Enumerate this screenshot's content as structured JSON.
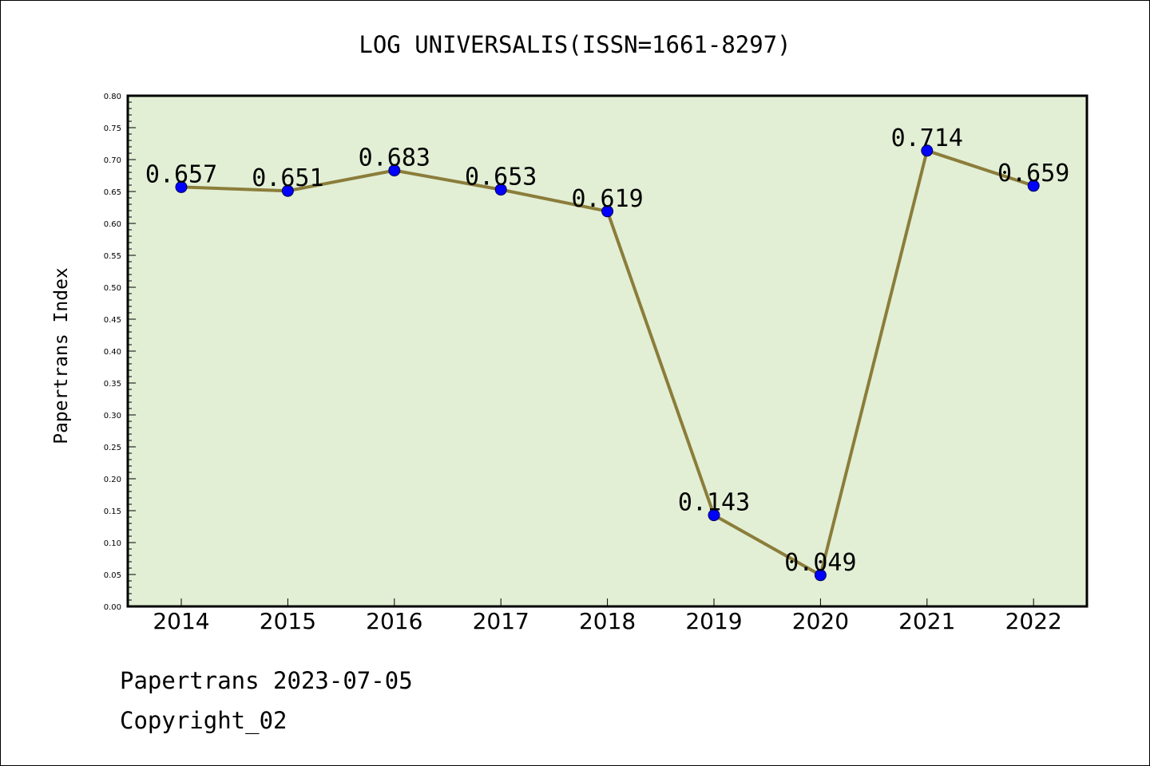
{
  "chart_data": {
    "type": "line",
    "title": "LOG UNIVERSALIS(ISSN=1661-8297)",
    "xlabel": "",
    "ylabel": "Papertrans Index",
    "categories": [
      "2014",
      "2015",
      "2016",
      "2017",
      "2018",
      "2019",
      "2020",
      "2021",
      "2022"
    ],
    "series": [
      {
        "values": [
          0.657,
          0.651,
          0.683,
          0.653,
          0.619,
          0.143,
          0.049,
          0.714,
          0.659
        ]
      }
    ],
    "data_labels": [
      "0.657",
      "0.651",
      "0.683",
      "0.653",
      "0.619",
      "0.143",
      "0.049",
      "0.714",
      "0.659"
    ],
    "ylim": [
      0.0,
      0.8
    ],
    "yticks": [
      "0.00",
      "0.05",
      "0.10",
      "0.15",
      "0.20",
      "0.25",
      "0.30",
      "0.35",
      "0.40",
      "0.45",
      "0.50",
      "0.55",
      "0.60",
      "0.65",
      "0.70",
      "0.75",
      "0.80"
    ],
    "grid": false,
    "legend": "none",
    "colors": {
      "plot_background": "#e2efd5",
      "line": "#8b7d3a",
      "marker": "#0000ff"
    }
  },
  "footer": {
    "line1": "Papertrans 2023-07-05",
    "line2": "Copyright_02"
  }
}
